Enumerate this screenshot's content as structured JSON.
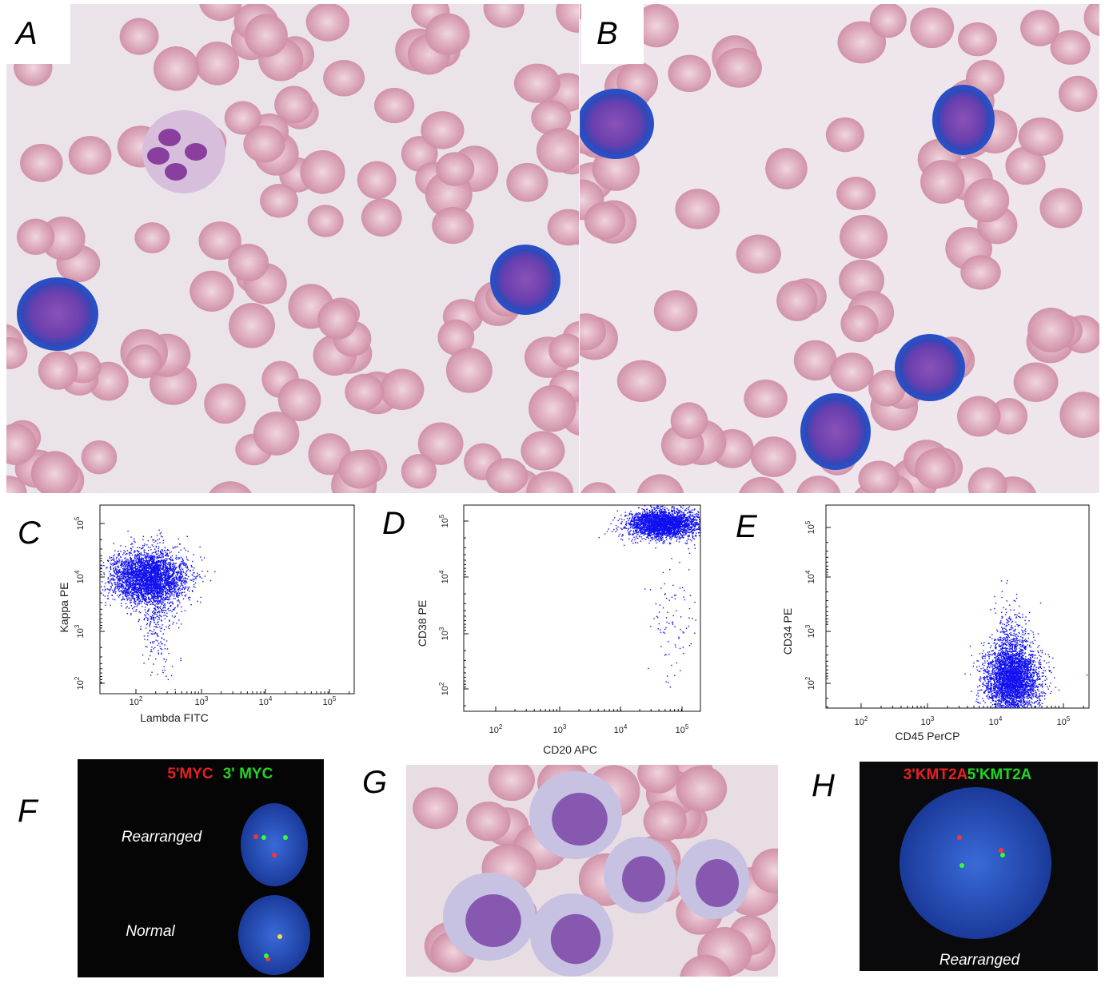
{
  "panels": [
    {
      "label": "A"
    },
    {
      "label": "B"
    },
    {
      "label": "C",
      "x_axis": "Lambda FITC",
      "y_axis": "Kappa PE",
      "x_ticks": [
        {
          "base": "10",
          "exp": "2"
        },
        {
          "base": "10",
          "exp": "3"
        },
        {
          "base": "10",
          "exp": "4"
        },
        {
          "base": "10",
          "exp": "5"
        }
      ],
      "y_ticks": [
        {
          "base": "10",
          "exp": "5"
        },
        {
          "base": "10",
          "exp": "4"
        },
        {
          "base": "10",
          "exp": "3"
        },
        {
          "base": "10",
          "exp": "2"
        }
      ]
    },
    {
      "label": "D",
      "x_axis": "CD20 APC",
      "y_axis": "CD38 PE",
      "x_ticks": [
        {
          "base": "10",
          "exp": "2"
        },
        {
          "base": "10",
          "exp": "3"
        },
        {
          "base": "10",
          "exp": "4"
        },
        {
          "base": "10",
          "exp": "5"
        }
      ],
      "y_ticks": [
        {
          "base": "10",
          "exp": "5"
        },
        {
          "base": "10",
          "exp": "4"
        },
        {
          "base": "10",
          "exp": "3"
        },
        {
          "base": "10",
          "exp": "2"
        }
      ]
    },
    {
      "label": "E",
      "x_axis": "CD45 PerCP",
      "y_axis": "CD34 PE",
      "x_ticks": [
        {
          "base": "10",
          "exp": "2"
        },
        {
          "base": "10",
          "exp": "3"
        },
        {
          "base": "10",
          "exp": "4"
        },
        {
          "base": "10",
          "exp": "5"
        }
      ],
      "y_ticks": [
        {
          "base": "10",
          "exp": "5"
        },
        {
          "base": "10",
          "exp": "4"
        },
        {
          "base": "10",
          "exp": "3"
        },
        {
          "base": "10",
          "exp": "2"
        }
      ]
    },
    {
      "label": "F",
      "probe_red": "5'MYC",
      "probe_green": "3' MYC",
      "top_note": "Rearranged",
      "bottom_note": "Normal"
    },
    {
      "label": "G"
    },
    {
      "label": "H",
      "probe_red": "3'KMT2A",
      "probe_green": "5'KMT2A",
      "note": "Rearranged"
    }
  ]
}
